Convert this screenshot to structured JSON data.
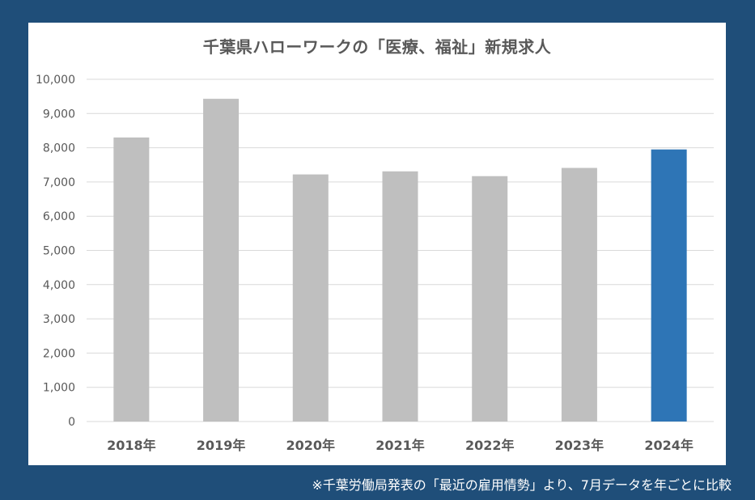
{
  "colors": {
    "background": "#1f4e79",
    "panel": "#ffffff",
    "bar_default": "#bfbfbf",
    "bar_highlight": "#2e75b6",
    "grid": "#d9d9d9",
    "text": "#595959"
  },
  "chart_data": {
    "type": "bar",
    "title": "千葉県ハローワークの「医療、福祉」新規求人",
    "xlabel": "",
    "ylabel": "",
    "categories": [
      "2018年",
      "2019年",
      "2020年",
      "2021年",
      "2022年",
      "2023年",
      "2024年"
    ],
    "values": [
      8300,
      9430,
      7220,
      7310,
      7170,
      7410,
      7950
    ],
    "highlight_index": 6,
    "ylim": [
      0,
      10000
    ],
    "yticks": [
      "0",
      "1,000",
      "2,000",
      "3,000",
      "4,000",
      "5,000",
      "6,000",
      "7,000",
      "8,000",
      "9,000",
      "10,000"
    ],
    "grid": true,
    "legend": "none"
  },
  "footnote": "※千葉労働局発表の「最近の雇用情勢」より、7月データを年ごとに比較"
}
